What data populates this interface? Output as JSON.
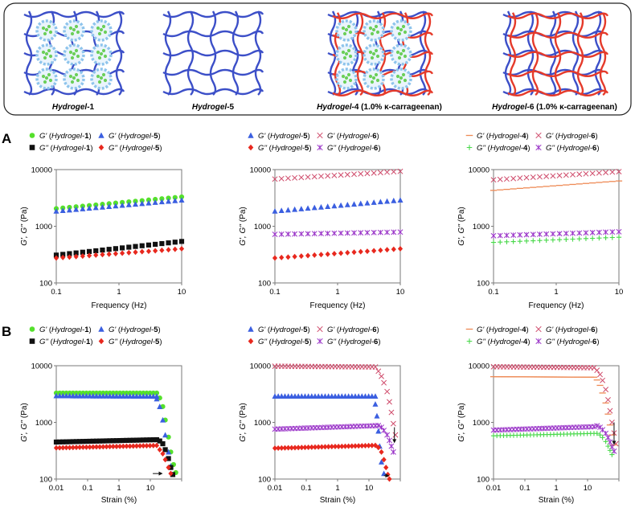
{
  "figure": {
    "panel_a_letter": "A",
    "panel_b_letter": "B",
    "schematic_captions": [
      {
        "pre": "Hydrogel-",
        "num": "1",
        "post": ""
      },
      {
        "pre": "Hydrogel-",
        "num": "5",
        "post": ""
      },
      {
        "pre": "Hydrogel-",
        "num": "4",
        "post": " (1.0% κ-carrageenan)"
      },
      {
        "pre": "Hydrogel-",
        "num": "6",
        "post": " (1.0% κ-carrageenan)"
      }
    ]
  },
  "colors": {
    "green": "#55e02c",
    "blue": "#3b5fe0",
    "black": "#111111",
    "red": "#e8281e",
    "pink": "#cf4a6a",
    "purple": "#9a34c8",
    "orange": "#ee8a55",
    "lime": "#48d84a",
    "network_blue": "#3c4fc8",
    "network_red": "#e53a2a",
    "particle": "#6ccf5a",
    "shell": "#8ec4ec"
  },
  "chart_data": [
    {
      "id": "A1",
      "type": "scatter",
      "row": "A",
      "xscale": "log",
      "yscale": "log",
      "xlim": [
        0.1,
        10
      ],
      "ylim": [
        100,
        10000
      ],
      "xticks": [
        "0.1",
        "1",
        "10"
      ],
      "yticks": [
        "100",
        "1000",
        "10000"
      ],
      "xlabel": "Frequency (Hz)",
      "ylabel": "G', G'' (Pa)",
      "legend": [
        {
          "mod": "G'",
          "sample": "1",
          "marker": "circle",
          "color": "#55e02c"
        },
        {
          "mod": "G'",
          "sample": "5",
          "marker": "triangle",
          "color": "#3b5fe0"
        },
        {
          "mod": "G''",
          "sample": "1",
          "marker": "square",
          "color": "#111111"
        },
        {
          "mod": "G''",
          "sample": "5",
          "marker": "diamond",
          "color": "#e8281e"
        }
      ],
      "series": [
        {
          "name": "G' (Hydrogel-1)",
          "marker": "circle",
          "color": "#55e02c",
          "x_range": [
            0.1,
            10
          ],
          "y_range": [
            2050,
            3300
          ]
        },
        {
          "name": "G' (Hydrogel-5)",
          "marker": "triangle",
          "color": "#3b5fe0",
          "x_range": [
            0.1,
            10
          ],
          "y_range": [
            1850,
            2900
          ]
        },
        {
          "name": "G'' (Hydrogel-1)",
          "marker": "square",
          "color": "#111111",
          "x_range": [
            0.1,
            10
          ],
          "y_range": [
            310,
            540
          ]
        },
        {
          "name": "G'' (Hydrogel-5)",
          "marker": "diamond",
          "color": "#e8281e",
          "x_range": [
            0.1,
            10
          ],
          "y_range": [
            275,
            400
          ]
        }
      ]
    },
    {
      "id": "A2",
      "type": "scatter",
      "row": "A",
      "xscale": "log",
      "yscale": "log",
      "xlim": [
        0.1,
        10
      ],
      "ylim": [
        100,
        10000
      ],
      "xticks": [
        "0.1",
        "1",
        "10"
      ],
      "yticks": [
        "100",
        "1000",
        "10000"
      ],
      "xlabel": "Frequency (Hz)",
      "ylabel": "G', G'' (Pa)",
      "legend": [
        {
          "mod": "G'",
          "sample": "5",
          "marker": "triangle",
          "color": "#3b5fe0"
        },
        {
          "mod": "G'",
          "sample": "6",
          "marker": "x",
          "color": "#cf4a6a"
        },
        {
          "mod": "G''",
          "sample": "5",
          "marker": "diamond",
          "color": "#e8281e"
        },
        {
          "mod": "G''",
          "sample": "6",
          "marker": "asterisk",
          "color": "#9a34c8"
        }
      ],
      "series": [
        {
          "name": "G' (Hydrogel-6)",
          "marker": "x",
          "color": "#cf4a6a",
          "x_range": [
            0.1,
            10
          ],
          "y_range": [
            6800,
            9300
          ]
        },
        {
          "name": "G' (Hydrogel-5)",
          "marker": "triangle",
          "color": "#3b5fe0",
          "x_range": [
            0.1,
            10
          ],
          "y_range": [
            1850,
            2900
          ]
        },
        {
          "name": "G'' (Hydrogel-6)",
          "marker": "asterisk",
          "color": "#9a34c8",
          "x_range": [
            0.1,
            10
          ],
          "y_range": [
            720,
            790
          ]
        },
        {
          "name": "G'' (Hydrogel-5)",
          "marker": "diamond",
          "color": "#e8281e",
          "x_range": [
            0.1,
            10
          ],
          "y_range": [
            275,
            400
          ]
        }
      ]
    },
    {
      "id": "A3",
      "type": "scatter",
      "row": "A",
      "xscale": "log",
      "yscale": "log",
      "xlim": [
        0.1,
        10
      ],
      "ylim": [
        100,
        10000
      ],
      "xticks": [
        "0.1",
        "1",
        "10"
      ],
      "yticks": [
        "100",
        "1000",
        "10000"
      ],
      "xlabel": "Frequency (Hz)",
      "ylabel": "G', G'' (Pa)",
      "legend": [
        {
          "mod": "G'",
          "sample": "4",
          "marker": "dash",
          "color": "#ee8a55"
        },
        {
          "mod": "G'",
          "sample": "6",
          "marker": "x",
          "color": "#cf4a6a"
        },
        {
          "mod": "G''",
          "sample": "4",
          "marker": "plus",
          "color": "#48d84a"
        },
        {
          "mod": "G''",
          "sample": "6",
          "marker": "asterisk",
          "color": "#9a34c8"
        }
      ],
      "series": [
        {
          "name": "G' (Hydrogel-6)",
          "marker": "x",
          "color": "#cf4a6a",
          "x_range": [
            0.1,
            10
          ],
          "y_range": [
            6600,
            9200
          ]
        },
        {
          "name": "G' (Hydrogel-4)",
          "marker": "dash",
          "color": "#ee8a55",
          "x_range": [
            0.1,
            10
          ],
          "y_range": [
            4300,
            6300
          ]
        },
        {
          "name": "G'' (Hydrogel-6)",
          "marker": "asterisk",
          "color": "#9a34c8",
          "x_range": [
            0.1,
            10
          ],
          "y_range": [
            680,
            800
          ]
        },
        {
          "name": "G'' (Hydrogel-4)",
          "marker": "plus",
          "color": "#48d84a",
          "x_range": [
            0.1,
            10
          ],
          "y_range": [
            520,
            640
          ]
        }
      ]
    },
    {
      "id": "B1",
      "type": "scatter",
      "row": "B",
      "xscale": "log",
      "yscale": "log",
      "xlim": [
        0.01,
        100
      ],
      "ylim": [
        100,
        10000
      ],
      "xticks": [
        "0.01",
        "0.1",
        "1",
        "10"
      ],
      "yticks": [
        "100",
        "1000",
        "10000"
      ],
      "xlabel": "Strain (%)",
      "ylabel": "G', G'' (Pa)",
      "legend": [
        {
          "mod": "G'",
          "sample": "1",
          "marker": "circle",
          "color": "#55e02c"
        },
        {
          "mod": "G'",
          "sample": "5",
          "marker": "triangle",
          "color": "#3b5fe0"
        },
        {
          "mod": "G''",
          "sample": "1",
          "marker": "square",
          "color": "#111111"
        },
        {
          "mod": "G''",
          "sample": "5",
          "marker": "diamond",
          "color": "#e8281e"
        }
      ],
      "arrows": [
        {
          "from_strain": 12,
          "to_strain": 25,
          "at": 125
        }
      ],
      "series": [
        {
          "name": "G' (Hydrogel-1)",
          "marker": "circle",
          "color": "#55e02c",
          "plateau": 3300,
          "slope": 1.0,
          "steps": [
            [
              20,
              2700
            ],
            [
              25,
              1900
            ],
            [
              30,
              1100
            ],
            [
              38,
              550
            ],
            [
              45,
              300
            ],
            [
              55,
              180
            ],
            [
              65,
              130
            ]
          ]
        },
        {
          "name": "G' (Hydrogel-5)",
          "marker": "triangle",
          "color": "#3b5fe0",
          "plateau": 2950,
          "slope": 0.98,
          "steps": [
            [
              16,
              2600
            ],
            [
              20,
              1900
            ],
            [
              25,
              1100
            ],
            [
              30,
              600
            ],
            [
              38,
              300
            ],
            [
              45,
              170
            ],
            [
              52,
              120
            ]
          ]
        },
        {
          "name": "G'' (Hydrogel-1)",
          "marker": "square",
          "color": "#111111",
          "plateau": 450,
          "slope": 1.1,
          "steps": [
            [
              20,
              470
            ],
            [
              25,
              420
            ],
            [
              30,
              330
            ],
            [
              38,
              230
            ],
            [
              45,
              160
            ],
            [
              52,
              120
            ]
          ]
        },
        {
          "name": "G'' (Hydrogel-5)",
          "marker": "diamond",
          "color": "#e8281e",
          "plateau": 355,
          "slope": 1.1,
          "steps": [
            [
              20,
              330
            ],
            [
              25,
              280
            ],
            [
              30,
              220
            ],
            [
              38,
              160
            ],
            [
              45,
              125
            ]
          ]
        }
      ]
    },
    {
      "id": "B2",
      "type": "scatter",
      "row": "B",
      "xscale": "log",
      "yscale": "log",
      "xlim": [
        0.01,
        100
      ],
      "ylim": [
        100,
        10000
      ],
      "xticks": [
        "0.01",
        "0.1",
        "1",
        "10"
      ],
      "yticks": [
        "100",
        "1000",
        "10000"
      ],
      "xlabel": "Strain (%)",
      "ylabel": "G', G'' (Pa)",
      "legend": [
        {
          "mod": "G'",
          "sample": "5",
          "marker": "triangle",
          "color": "#3b5fe0"
        },
        {
          "mod": "G'",
          "sample": "6",
          "marker": "x",
          "color": "#cf4a6a"
        },
        {
          "mod": "G''",
          "sample": "5",
          "marker": "diamond",
          "color": "#e8281e"
        },
        {
          "mod": "G''",
          "sample": "6",
          "marker": "asterisk",
          "color": "#9a34c8"
        }
      ],
      "arrows": [
        {
          "from_strain": 30,
          "to_strain": 45,
          "at": 115
        },
        {
          "vertical_strain": 65,
          "from": 820,
          "to": 430
        }
      ],
      "series": [
        {
          "name": "G' (Hydrogel-6)",
          "marker": "x",
          "color": "#cf4a6a",
          "plateau": 9800,
          "slope": 0.97,
          "steps": [
            [
              20,
              8000
            ],
            [
              25,
              6500
            ],
            [
              30,
              5000
            ],
            [
              38,
              3500
            ],
            [
              45,
              2300
            ],
            [
              52,
              1500
            ],
            [
              60,
              950
            ],
            [
              70,
              600
            ]
          ]
        },
        {
          "name": "G' (Hydrogel-5)",
          "marker": "triangle",
          "color": "#3b5fe0",
          "plateau": 2900,
          "slope": 1.0,
          "steps": [
            [
              16,
              2100
            ],
            [
              18,
              1300
            ],
            [
              20,
              700
            ],
            [
              22,
              380
            ],
            [
              25,
              200
            ],
            [
              30,
              125
            ]
          ]
        },
        {
          "name": "G'' (Hydrogel-6)",
          "marker": "asterisk",
          "color": "#9a34c8",
          "plateau": 760,
          "slope": 1.15,
          "steps": [
            [
              20,
              880
            ],
            [
              25,
              820
            ],
            [
              30,
              720
            ],
            [
              38,
              600
            ],
            [
              45,
              480
            ],
            [
              52,
              380
            ],
            [
              60,
              300
            ]
          ]
        },
        {
          "name": "G'' (Hydrogel-5)",
          "marker": "diamond",
          "color": "#e8281e",
          "plateau": 350,
          "slope": 1.12,
          "steps": [
            [
              20,
              360
            ],
            [
              25,
              300
            ],
            [
              30,
              220
            ],
            [
              35,
              160
            ],
            [
              40,
              120
            ],
            [
              45,
              100
            ]
          ]
        }
      ]
    },
    {
      "id": "B3",
      "type": "scatter",
      "row": "B",
      "xscale": "log",
      "yscale": "log",
      "xlim": [
        0.01,
        100
      ],
      "ylim": [
        100,
        10000
      ],
      "xticks": [
        "0.01",
        "0.1",
        "1",
        "10"
      ],
      "yticks": [
        "100",
        "1000",
        "10000"
      ],
      "xlabel": "Strain (%)",
      "ylabel": "G', G'' (Pa)",
      "legend": [
        {
          "mod": "G'",
          "sample": "4",
          "marker": "dash",
          "color": "#ee8a55"
        },
        {
          "mod": "G'",
          "sample": "6",
          "marker": "x",
          "color": "#cf4a6a"
        },
        {
          "mod": "G''",
          "sample": "4",
          "marker": "plus",
          "color": "#48d84a"
        },
        {
          "mod": "G''",
          "sample": "6",
          "marker": "asterisk",
          "color": "#9a34c8"
        }
      ],
      "arrows": [
        {
          "vertical_strain": 70,
          "from": 1000,
          "to": 400
        }
      ],
      "series": [
        {
          "name": "G' (Hydrogel-6)",
          "marker": "x",
          "color": "#cf4a6a",
          "plateau": 9600,
          "slope": 0.96,
          "steps": [
            [
              20,
              8300
            ],
            [
              25,
              7000
            ],
            [
              30,
              5500
            ],
            [
              38,
              3800
            ],
            [
              45,
              2500
            ],
            [
              52,
              1600
            ],
            [
              60,
              1000
            ],
            [
              70,
              650
            ],
            [
              80,
              420
            ]
          ]
        },
        {
          "name": "G' (Hydrogel-4)",
          "marker": "dash",
          "color": "#ee8a55",
          "plateau": 6400,
          "slope": 0.98,
          "steps": [
            [
              20,
              5600
            ],
            [
              25,
              4500
            ],
            [
              30,
              3300
            ],
            [
              38,
              2200
            ],
            [
              45,
              1400
            ],
            [
              52,
              900
            ],
            [
              60,
              600
            ],
            [
              70,
              400
            ]
          ]
        },
        {
          "name": "G'' (Hydrogel-6)",
          "marker": "asterisk",
          "color": "#9a34c8",
          "plateau": 730,
          "slope": 1.15,
          "steps": [
            [
              20,
              870
            ],
            [
              25,
              820
            ],
            [
              30,
              740
            ],
            [
              38,
              640
            ],
            [
              45,
              540
            ],
            [
              52,
              450
            ],
            [
              60,
              370
            ],
            [
              70,
              310
            ]
          ]
        },
        {
          "name": "G'' (Hydrogel-4)",
          "marker": "plus",
          "color": "#48d84a",
          "plateau": 580,
          "slope": 1.1,
          "steps": [
            [
              20,
              640
            ],
            [
              25,
              600
            ],
            [
              30,
              540
            ],
            [
              38,
              460
            ],
            [
              45,
              380
            ],
            [
              52,
              320
            ],
            [
              60,
              270
            ]
          ]
        }
      ]
    }
  ]
}
